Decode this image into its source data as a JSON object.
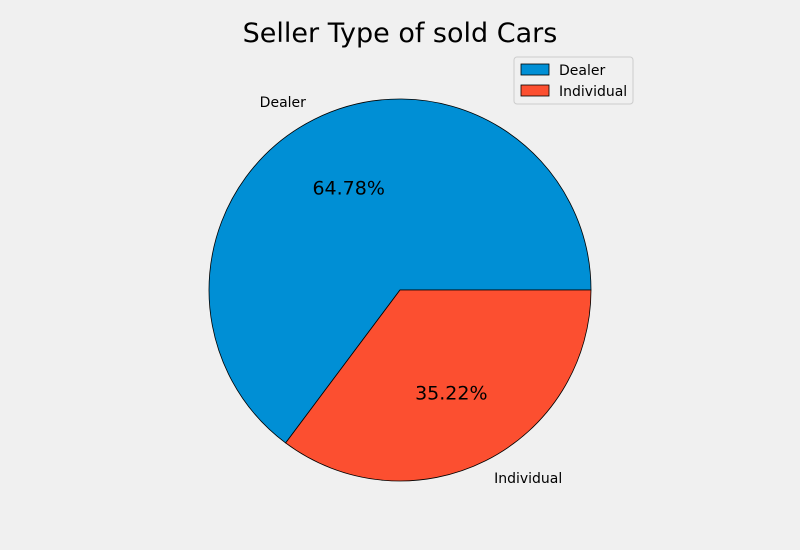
{
  "chart_data": {
    "type": "pie",
    "title": "Seller Type of sold Cars",
    "slices": [
      {
        "label": "Dealer",
        "percent": 64.78,
        "percent_label": "64.78%",
        "color": "#008fd5"
      },
      {
        "label": "Individual",
        "percent": 35.22,
        "percent_label": "35.22%",
        "color": "#fc4f30"
      }
    ],
    "legend": {
      "position": "top-right",
      "entries": [
        "Dealer",
        "Individual"
      ]
    },
    "background_color": "#f0f0f0",
    "edge_color": "#000000"
  }
}
